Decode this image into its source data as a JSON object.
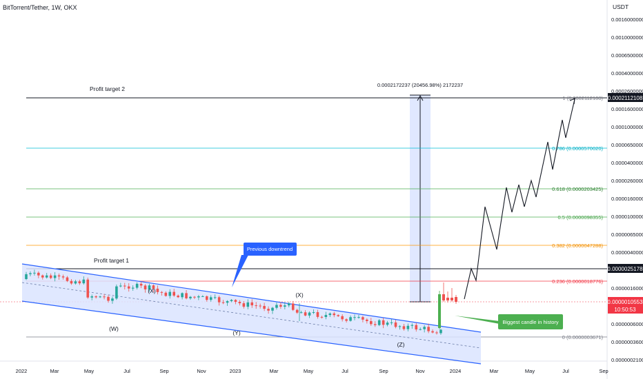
{
  "header": {
    "symbol_title": "BitTorrent/Tether, 1W, OKX",
    "currency": "USDT"
  },
  "chart_data": {
    "type": "candlestick",
    "x_ticks": [
      "2022",
      "Mar",
      "May",
      "Jul",
      "Sep",
      "Nov",
      "2023",
      "Mar",
      "May",
      "Jul",
      "Sep",
      "Nov",
      "2024",
      "Mar",
      "May",
      "Jul",
      "Sep"
    ],
    "y_ticks": [
      "0.0016000000",
      "0.0010000000",
      "0.0006500000",
      "0.0004000000",
      "0.0002600000",
      "0.0001600000",
      "0.0001000000",
      "0.0000650000",
      "0.0000400000",
      "0.0000260000",
      "0.0000160000",
      "0.0000100000",
      "0.0000065000",
      "0.0000040000",
      "0.0000026000",
      "0.0000016000",
      "0.0000010000",
      "0.0000006000",
      "0.0000003600",
      "0.0000002100"
    ],
    "price_badges": {
      "target2": "0.0002112108",
      "target1": "0.0000025178",
      "current": "0.0000010553",
      "countdown": "10:50:53"
    },
    "fib_levels": [
      {
        "label": "1 (0.0002112108)",
        "color": "#787b86"
      },
      {
        "label": "0.786 (0.0000570020)",
        "color": "#00bcd4"
      },
      {
        "label": "0.618 (0.0000203425)",
        "color": "#4caf50"
      },
      {
        "label": "0.5 (0.0000098355)",
        "color": "#4caf50"
      },
      {
        "label": "0.382 (0.0000047288)",
        "color": "#ff9800"
      },
      {
        "label": "0.236 (0.0000018776)",
        "color": "#f23645"
      },
      {
        "label": "0 (0.0000003671)",
        "color": "#787b86"
      }
    ],
    "annotations": {
      "profit_target_2": "Profit target 2",
      "profit_target_1": "Profit target 1",
      "measure": "0.0002172237 (20456.98%) 2172237",
      "previous_downtrend": "Previous downtrend",
      "biggest_candle": "Biggest candle in history",
      "wave_W": "(W)",
      "wave_X1": "(X)",
      "wave_Y": "(Y)",
      "wave_X2": "(X)",
      "wave_Z": "(Z)"
    },
    "colors": {
      "up": "#26a69a",
      "down": "#ef5350",
      "big_candle": "#4caf50",
      "channel": "#2962ff",
      "channel_fill": "#dbe4ff",
      "current_price": "#f23645"
    }
  }
}
